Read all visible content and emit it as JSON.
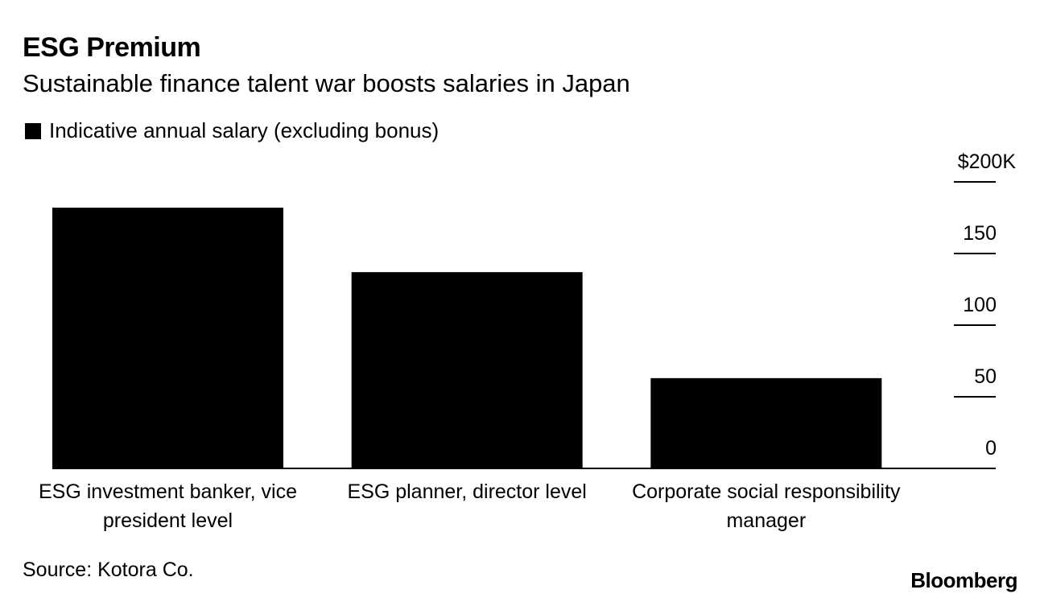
{
  "header": {
    "title": "ESG Premium",
    "subtitle": "Sustainable finance talent war boosts salaries in Japan"
  },
  "legend": {
    "label": "Indicative annual salary (excluding bonus)",
    "color": "#000000"
  },
  "chart_data": {
    "type": "bar",
    "categories": [
      [
        "ESG investment banker, vice",
        "president level"
      ],
      [
        "ESG planner, director level"
      ],
      [
        "Corporate social responsibility",
        "manager"
      ]
    ],
    "series": [
      {
        "name": "Indicative annual salary (excluding bonus)",
        "values": [
          182,
          137,
          63
        ]
      }
    ],
    "y_ticks": [
      {
        "value": 0,
        "label": "0"
      },
      {
        "value": 50,
        "label": "50"
      },
      {
        "value": 100,
        "label": "100"
      },
      {
        "value": 150,
        "label": "150"
      },
      {
        "value": 200,
        "label": "$200K"
      }
    ],
    "ylim": [
      0,
      200
    ],
    "y_axis_side": "right",
    "grid": false,
    "legend_position": "top-left",
    "bar_color": "#000000"
  },
  "footer": {
    "source": "Source: Kotora Co.",
    "brand": "Bloomberg"
  }
}
